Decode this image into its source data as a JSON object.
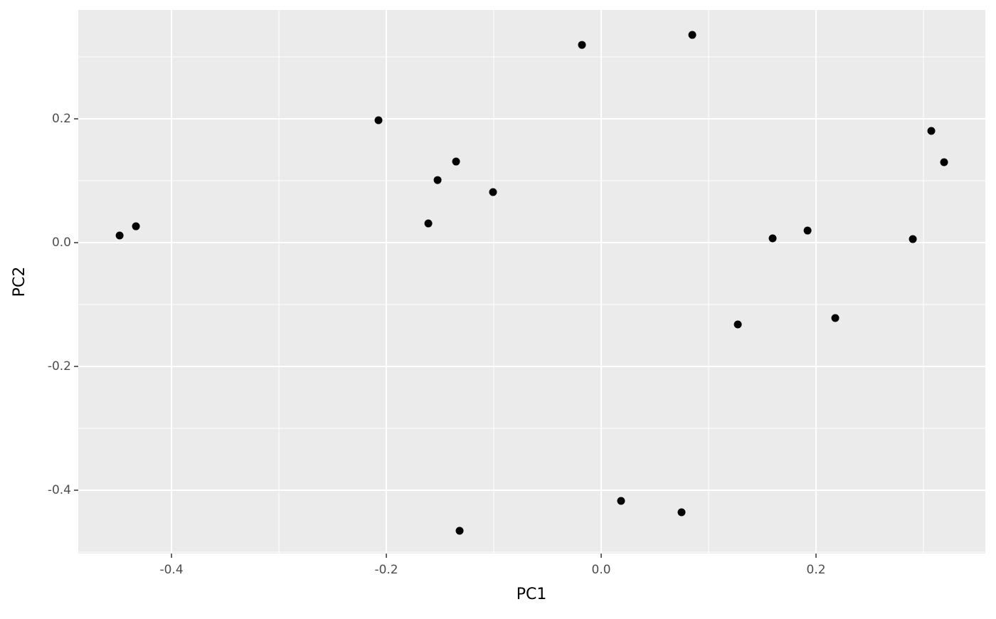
{
  "chart_data": {
    "type": "scatter",
    "x_label": "PC1",
    "y_label": "PC2",
    "series": [
      {
        "color": "#000000",
        "x": [
          -0.4483,
          -0.4331,
          -0.2073,
          -0.1523,
          -0.1351,
          -0.1609,
          -0.1007,
          -0.0179,
          0.0848,
          0.1596,
          0.1921,
          0.1272,
          0.2179,
          0.2901,
          0.3073,
          0.3192,
          0.0185,
          0.0748,
          -0.1318
        ],
        "values": [
          0.0115,
          0.0264,
          0.1977,
          0.1011,
          0.131,
          0.031,
          0.0816,
          0.3195,
          0.3356,
          0.0069,
          0.0195,
          -0.1322,
          -0.1218,
          0.0057,
          0.1805,
          0.1299,
          -0.4172,
          -0.4356,
          -0.4655
        ]
      }
    ],
    "xlim": [
      -0.4868,
      0.3576
    ],
    "ylim": [
      -0.5023,
      0.3759
    ],
    "xticks": [
      -0.4,
      -0.2,
      {
        "value": 0,
        "label": "0.0"
      },
      0.2
    ],
    "yticks": [
      -0.4,
      -0.2,
      {
        "value": 0,
        "label": "0.0"
      },
      0.2
    ],
    "xminor": [
      -0.3,
      -0.1,
      0.1,
      0.3
    ],
    "yminor": [
      -0.5,
      -0.3,
      -0.1,
      0.1,
      0.3
    ],
    "grid": true
  }
}
